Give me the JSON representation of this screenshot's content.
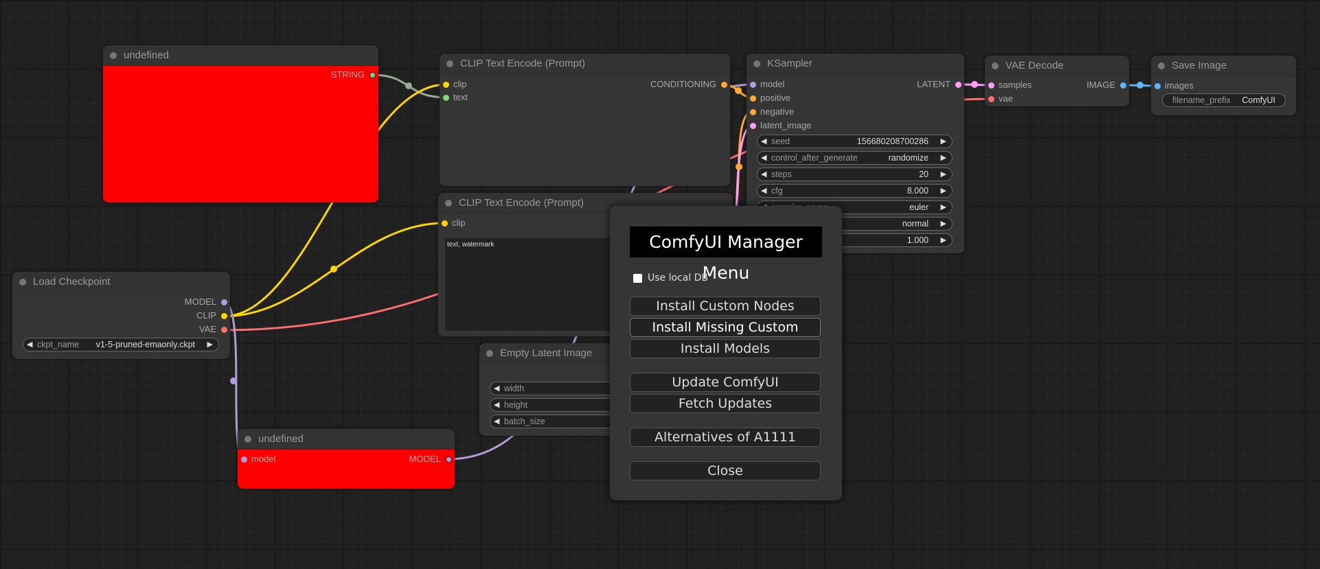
{
  "colors": {
    "model": "#b39ddb",
    "clip": "#ffd500",
    "vae": "#ff6e6e",
    "conditioning": "#ffa931",
    "latent": "#ff9cf9",
    "image": "#64b5f6",
    "string": "#77dd77",
    "error": "#ff0000"
  },
  "nodes": {
    "undef_top": {
      "title": "undefined",
      "outputs": [
        "STRING"
      ]
    },
    "clip1": {
      "title": "CLIP Text Encode (Prompt)",
      "inputs": [
        "clip",
        "text"
      ],
      "outputs": [
        "CONDITIONING"
      ]
    },
    "ksampler": {
      "title": "KSampler",
      "inputs": [
        "model",
        "positive",
        "negative",
        "latent_image"
      ],
      "outputs": [
        "LATENT"
      ],
      "widgets": [
        {
          "label": "seed",
          "value": "156680208700286"
        },
        {
          "label": "control_after_generate",
          "value": "randomize"
        },
        {
          "label": "steps",
          "value": "20"
        },
        {
          "label": "cfg",
          "value": "8.000"
        },
        {
          "label": "sampler_name",
          "value": "euler"
        },
        {
          "label": "",
          "value": "normal"
        },
        {
          "label": "",
          "value": "1.000"
        }
      ]
    },
    "vae": {
      "title": "VAE Decode",
      "inputs": [
        "samples",
        "vae"
      ],
      "outputs": [
        "IMAGE"
      ]
    },
    "save": {
      "title": "Save Image",
      "inputs": [
        "images"
      ],
      "widget": {
        "label": "filename_prefix",
        "value": "ComfyUI"
      }
    },
    "clip2": {
      "title": "CLIP Text Encode (Prompt)",
      "inputs": [
        "clip"
      ],
      "text": "text, watermark"
    },
    "ckpt": {
      "title": "Load Checkpoint",
      "outputs": [
        "MODEL",
        "CLIP",
        "VAE"
      ],
      "widget": {
        "label": "ckpt_name",
        "value": "v1-5-pruned-emaonly.ckpt"
      }
    },
    "latent": {
      "title": "Empty Latent Image",
      "widgets": [
        "width",
        "height",
        "batch_size"
      ]
    },
    "undef_bottom": {
      "title": "undefined",
      "inputs": [
        "model"
      ],
      "outputs": [
        "MODEL"
      ]
    }
  },
  "menu": {
    "title": "ComfyUI Manager Menu",
    "checkbox": {
      "label": "Use local DB",
      "checked": false
    },
    "buttons": [
      "Install Custom Nodes",
      "Install Missing Custom Nodes",
      "Install Models",
      "Update ComfyUI",
      "Fetch Updates",
      "Alternatives of A1111",
      "Close"
    ]
  }
}
